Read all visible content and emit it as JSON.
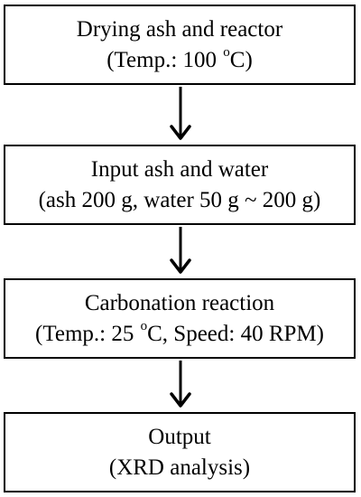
{
  "flowchart": {
    "steps": [
      {
        "line1": "Drying ash and reactor",
        "line2_prefix": "(Temp.: 100 ",
        "line2_sup": "o",
        "line2_suffix": "C)"
      },
      {
        "line1": "Input ash and water",
        "line2": "(ash 200 g, water 50 g ~ 200 g)"
      },
      {
        "line1": "Carbonation reaction",
        "line2_prefix": "(Temp.: 25 ",
        "line2_sup": "o",
        "line2_suffix": "C, Speed: 40 RPM)"
      },
      {
        "line1": "Output",
        "line2": "(XRD analysis)"
      }
    ],
    "colors": {
      "stroke": "#000000",
      "background": "#ffffff"
    }
  }
}
